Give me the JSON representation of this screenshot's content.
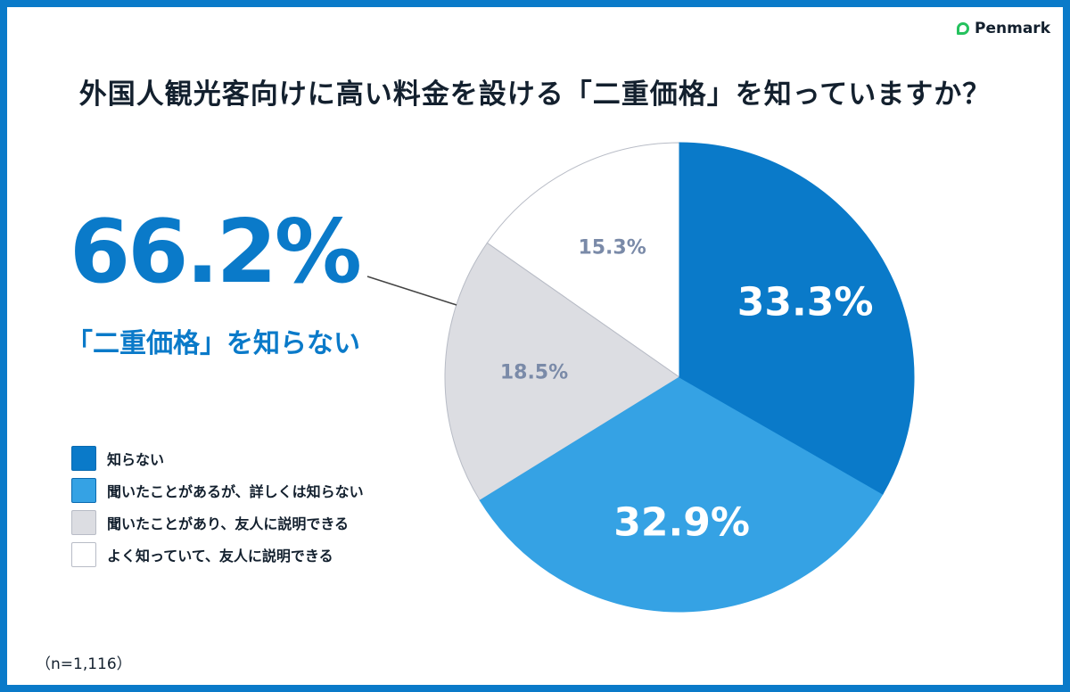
{
  "logo": "Penmark",
  "title": "外国人観光客向けに高い料金を設ける「二重価格」を知っていますか？",
  "highlight": {
    "value": "66.2%",
    "label": "「二重価格」を知らない"
  },
  "note": "（n=1,116）",
  "chart_data": {
    "type": "pie",
    "start": "top",
    "direction": "clockwise",
    "categories": [
      "知らない",
      "聞いたことがあるが、詳しくは知らない",
      "聞いたことがあり、友人に説明できる",
      "よく知っていて、友人に説明できる"
    ],
    "values": [
      33.3,
      32.9,
      18.5,
      15.3
    ],
    "labels": [
      "33.3%",
      "32.9%",
      "18.5%",
      "15.3%"
    ],
    "colors": [
      "#0a7ac9",
      "#35a2e4",
      "#dcdde2",
      "#ffffff"
    ],
    "label_colors": [
      "#ffffff",
      "#ffffff",
      "#7a8aa8",
      "#7a8aa8"
    ],
    "legend_position": "left"
  }
}
